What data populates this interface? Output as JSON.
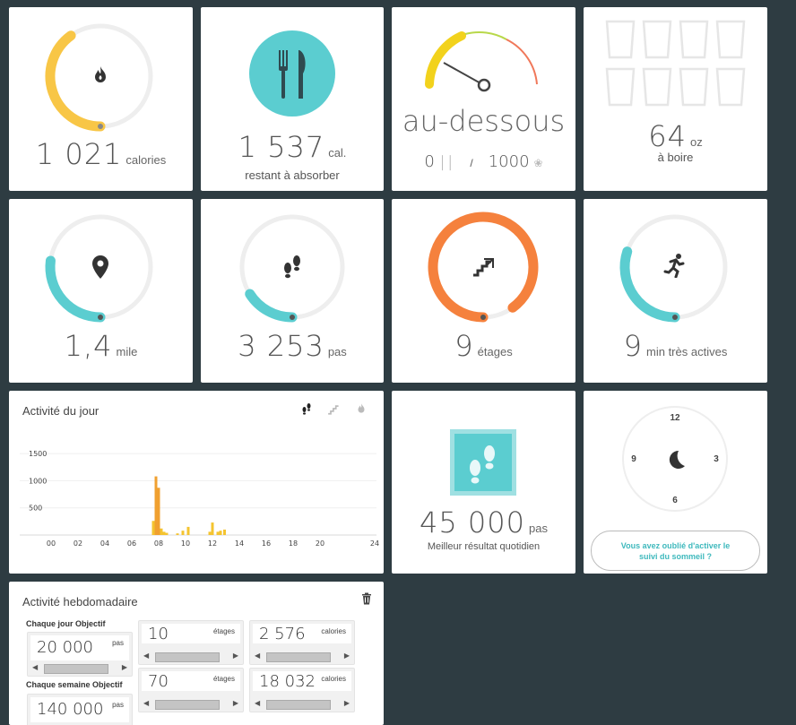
{
  "calories_tile": {
    "value": "1 021",
    "unit": "calories",
    "progress": 0.4
  },
  "food_tile": {
    "value": "1 537",
    "unit": "cal.",
    "caption": "restant à absorber"
  },
  "gauge_tile": {
    "status": "au-dessous",
    "food_value": "0",
    "separator": "/",
    "burn_value": "1000"
  },
  "water_tile": {
    "value": "64",
    "unit": "oz",
    "caption": "à boire",
    "glasses_filled": 0,
    "glasses_total": 8
  },
  "distance_tile": {
    "value": "1,4",
    "unit": "mile",
    "progress": 0.27
  },
  "steps_tile": {
    "value": "3 253",
    "unit": "pas",
    "progress": 0.16
  },
  "floors_tile": {
    "value": "9",
    "unit": "étages",
    "progress": 0.9
  },
  "active_tile": {
    "value": "9",
    "unit": "min très actives",
    "progress": 0.3
  },
  "daily_activity": {
    "title": "Activité du jour",
    "tabs": [
      "steps-icon",
      "floors-icon",
      "calories-icon"
    ]
  },
  "chart_data": {
    "type": "bar",
    "title": "Activité du jour",
    "xlabel": "",
    "ylabel": "",
    "x_ticks": [
      "00",
      "02",
      "04",
      "06",
      "08",
      "10",
      "12",
      "14",
      "16",
      "18",
      "20",
      "24"
    ],
    "y_ticks": [
      "1500",
      "1000",
      "500"
    ],
    "ylim": [
      0,
      1750
    ],
    "x_hours": [
      7.6,
      7.8,
      8.0,
      8.2,
      8.4,
      8.6,
      9.4,
      9.8,
      10.2,
      11.8,
      12.0,
      12.4,
      12.6,
      12.9
    ],
    "values": [
      260,
      1080,
      870,
      120,
      60,
      40,
      30,
      80,
      150,
      60,
      230,
      60,
      80,
      100
    ],
    "colors": [
      "#f4c430",
      "#f0a030",
      "#f0a030",
      "#f4c430",
      "#f4c430",
      "#f4c430",
      "#f4c430",
      "#f4c430",
      "#f4c430",
      "#f4c430",
      "#f4c430",
      "#f4c430",
      "#f4c430",
      "#f4c430"
    ],
    "grid": true
  },
  "badge_tile": {
    "value": "45 000",
    "unit": "pas",
    "caption": "Meilleur résultat quotidien"
  },
  "sleep_tile": {
    "clock_labels": [
      "12",
      "3",
      "6",
      "9"
    ],
    "button_label": "Vous avez oublié d'activer le suivi du sommeil ?"
  },
  "weekly": {
    "title": "Activité hebdomadaire",
    "daily_goal_label": "Chaque jour Objectif",
    "weekly_goal_label": "Chaque semaine Objectif",
    "daily_steps": {
      "value": "20 000",
      "unit": "pas"
    },
    "daily_floors": {
      "value": "10",
      "unit": "étages"
    },
    "daily_calories": {
      "value": "2 576",
      "unit": "calories"
    },
    "weekly_steps": {
      "value": "140 000",
      "unit": "pas"
    },
    "weekly_floors": {
      "value": "70",
      "unit": "étages"
    },
    "weekly_calories": {
      "value": "18 032",
      "unit": "calories"
    }
  },
  "colors": {
    "teal": "#5bcdd0",
    "orange": "#f5813d",
    "yellow": "#f8c646",
    "track": "#eeeeee",
    "background": "#2e3c42"
  }
}
